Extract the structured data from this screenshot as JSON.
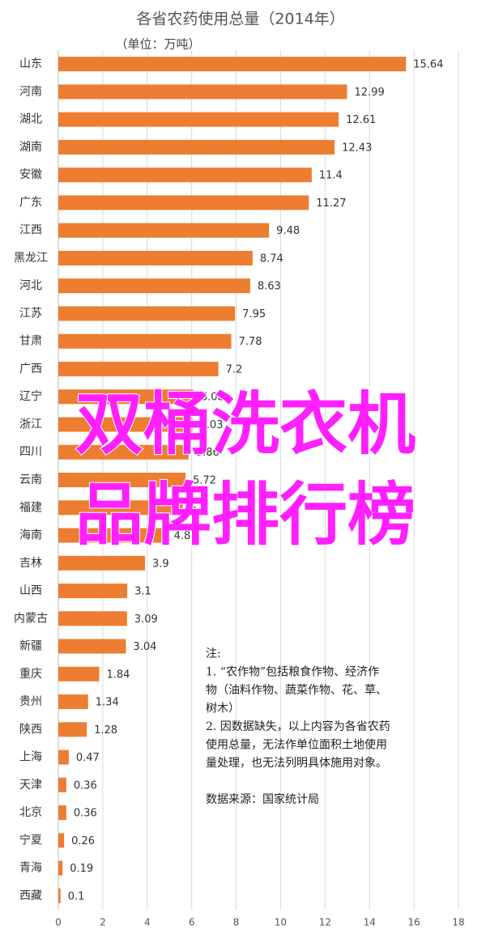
{
  "chart_data": {
    "type": "barh",
    "title": "各省农药使用总量（2014年）",
    "subtitle": "（单位：万吨）",
    "categories": [
      "山东",
      "河南",
      "湖北",
      "湖南",
      "安徽",
      "广东",
      "江西",
      "黑龙江",
      "河北",
      "江苏",
      "甘肃",
      "广西",
      "辽宁",
      "浙江",
      "四川",
      "云南",
      "福建",
      "海南",
      "吉林",
      "山西",
      "内蒙古",
      "新疆",
      "重庆",
      "贵州",
      "陕西",
      "上海",
      "天津",
      "北京",
      "宁夏",
      "青海",
      "西藏"
    ],
    "values": [
      15.64,
      12.99,
      12.61,
      12.43,
      11.4,
      11.27,
      9.48,
      8.74,
      8.63,
      7.95,
      7.78,
      7.2,
      6.08,
      6.03,
      5.86,
      5.72,
      5.6,
      4.87,
      3.9,
      3.1,
      3.09,
      3.04,
      1.84,
      1.34,
      1.28,
      0.47,
      0.36,
      0.36,
      0.26,
      0.19,
      0.1
    ],
    "color": "#ed7d31",
    "xlim": [
      0,
      18
    ],
    "xticks": [
      0,
      2,
      4,
      6,
      8,
      10,
      12,
      14,
      16,
      18
    ],
    "grid": true,
    "notes": [
      "注:",
      "1. “农作物”包括粮食作物、经济作",
      "物（油料作物、蔬菜作物、花、草、",
      "树木）",
      "2. 因数据缺失，以上内容为各省农药",
      "使用总量，无法作单位面积土地使用",
      "量处理，也无法列明具体施用对象。",
      "",
      "数据来源：国家统计局"
    ],
    "overlay_text": [
      "双桶洗衣机",
      "品牌排行榜"
    ]
  }
}
